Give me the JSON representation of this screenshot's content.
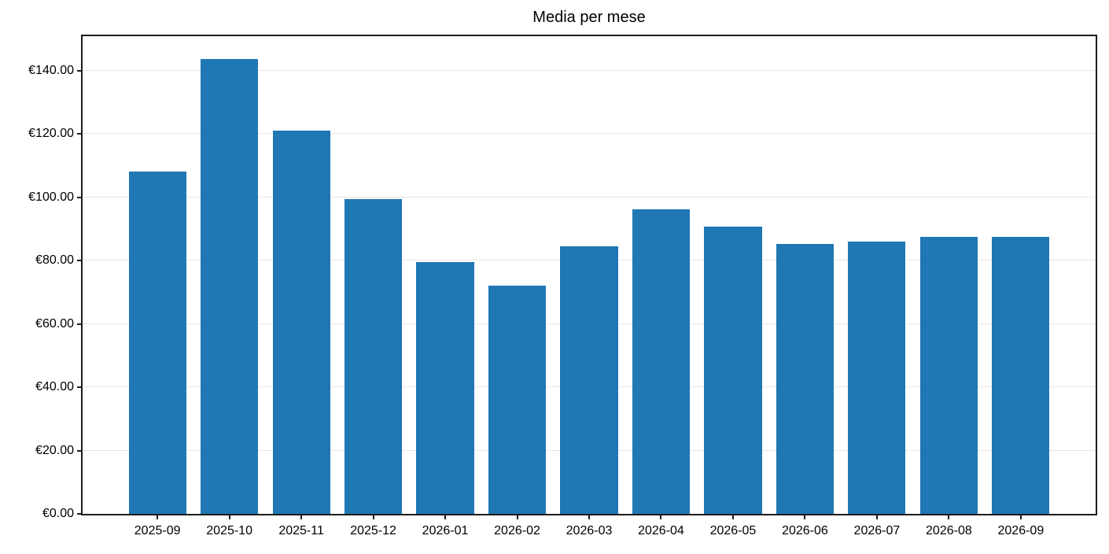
{
  "chart_data": {
    "type": "bar",
    "title": "Media per mese",
    "categories": [
      "2025-09",
      "2025-10",
      "2025-11",
      "2025-12",
      "2026-01",
      "2026-02",
      "2026-03",
      "2026-04",
      "2026-05",
      "2026-06",
      "2026-07",
      "2026-08",
      "2026-09"
    ],
    "values": [
      108.2,
      143.8,
      121.0,
      99.5,
      79.5,
      72.0,
      84.5,
      96.2,
      90.8,
      85.3,
      85.9,
      87.5,
      87.4
    ],
    "xlabel": "",
    "ylabel": "",
    "ylim": [
      0,
      150.9
    ],
    "yticks": [
      0,
      20,
      40,
      60,
      80,
      100,
      120,
      140
    ],
    "ytick_labels": [
      "€0.00",
      "€20.00",
      "€40.00",
      "€60.00",
      "€80.00",
      "€100.00",
      "€120.00",
      "€140.00"
    ],
    "bar_color": "#1f77b4",
    "grid": "horizontal",
    "gridline_color": "#e6e6e6",
    "frame_color": "#1c1c1c",
    "legend": "none"
  }
}
